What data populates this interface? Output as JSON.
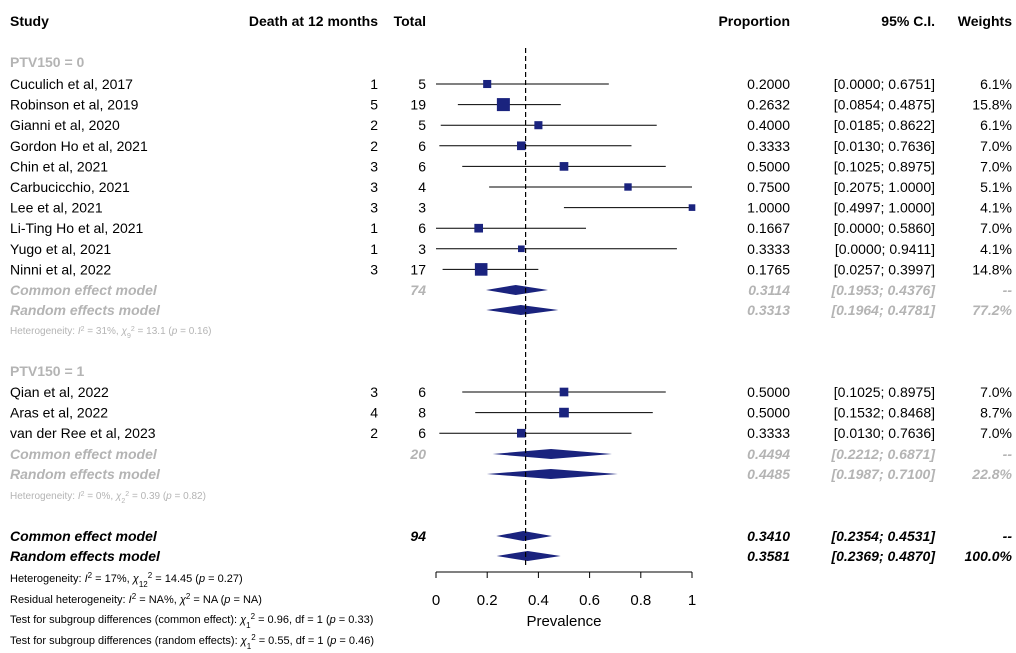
{
  "header": {
    "study": "Study",
    "events": "Death at 12 months",
    "total": "Total",
    "proportion": "Proportion",
    "ci": "95% C.I.",
    "weights": "Weights"
  },
  "colors": {
    "marker": "#1a237e",
    "grey": "#b4b4b4",
    "text": "#000000"
  },
  "chart_data": {
    "type": "forest",
    "xlabel": "Prevalence",
    "xlim": [
      0,
      1
    ],
    "x_ticks": [
      0,
      0.2,
      0.4,
      0.6,
      0.8,
      1
    ],
    "x_tick_labels": [
      "0",
      "0.2",
      "0.4",
      "0.6",
      "0.8",
      "1"
    ],
    "reference_line": 0.35,
    "subgroups": [
      {
        "label": "PTV150 = 0",
        "studies": [
          {
            "study": "Cuculich et al, 2017",
            "events": "1",
            "total": "5",
            "prop": 0.2,
            "lower": 0.0,
            "upper": 0.6751,
            "prop_text": "0.2000",
            "ci_text": "[0.0000; 0.6751]",
            "weight_text": "6.1%"
          },
          {
            "study": "Robinson et al, 2019",
            "events": "5",
            "total": "19",
            "prop": 0.2632,
            "lower": 0.0854,
            "upper": 0.4875,
            "prop_text": "0.2632",
            "ci_text": "[0.0854; 0.4875]",
            "weight_text": "15.8%"
          },
          {
            "study": "Gianni et al, 2020",
            "events": "2",
            "total": "5",
            "prop": 0.4,
            "lower": 0.0185,
            "upper": 0.8622,
            "prop_text": "0.4000",
            "ci_text": "[0.0185; 0.8622]",
            "weight_text": "6.1%"
          },
          {
            "study": "Gordon Ho et al, 2021",
            "events": "2",
            "total": "6",
            "prop": 0.3333,
            "lower": 0.013,
            "upper": 0.7636,
            "prop_text": "0.3333",
            "ci_text": "[0.0130; 0.7636]",
            "weight_text": "7.0%"
          },
          {
            "study": "Chin et al, 2021",
            "events": "3",
            "total": "6",
            "prop": 0.5,
            "lower": 0.1025,
            "upper": 0.8975,
            "prop_text": "0.5000",
            "ci_text": "[0.1025; 0.8975]",
            "weight_text": "7.0%"
          },
          {
            "study": "Carbucicchio, 2021",
            "events": "3",
            "total": "4",
            "prop": 0.75,
            "lower": 0.2075,
            "upper": 1.0,
            "prop_text": "0.7500",
            "ci_text": "[0.2075; 1.0000]",
            "weight_text": "5.1%"
          },
          {
            "study": "Lee et al, 2021",
            "events": "3",
            "total": "3",
            "prop": 1.0,
            "lower": 0.4997,
            "upper": 1.0,
            "prop_text": "1.0000",
            "ci_text": "[0.4997; 1.0000]",
            "weight_text": "4.1%"
          },
          {
            "study": "Li-Ting Ho et al, 2021",
            "events": "1",
            "total": "6",
            "prop": 0.1667,
            "lower": 0.0,
            "upper": 0.586,
            "prop_text": "0.1667",
            "ci_text": "[0.0000; 0.5860]",
            "weight_text": "7.0%"
          },
          {
            "study": "Yugo et al, 2021",
            "events": "1",
            "total": "3",
            "prop": 0.3333,
            "lower": 0.0,
            "upper": 0.9411,
            "prop_text": "0.3333",
            "ci_text": "[0.0000; 0.9411]",
            "weight_text": "4.1%"
          },
          {
            "study": "Ninni et al, 2022",
            "events": "3",
            "total": "17",
            "prop": 0.1765,
            "lower": 0.0257,
            "upper": 0.3997,
            "prop_text": "0.1765",
            "ci_text": "[0.0257; 0.3997]",
            "weight_text": "14.8%"
          }
        ],
        "common": {
          "label": "Common effect model",
          "total": "74",
          "prop": 0.3114,
          "lower": 0.1953,
          "upper": 0.4376,
          "prop_text": "0.3114",
          "ci_text": "[0.1953; 0.4376]",
          "weight_text": "--"
        },
        "random": {
          "label": "Random effects model",
          "prop": 0.3313,
          "lower": 0.1964,
          "upper": 0.4781,
          "prop_text": "0.3313",
          "ci_text": "[0.1964; 0.4781]",
          "weight_text": "77.2%"
        },
        "heterogeneity": {
          "i2": "31%",
          "df": "9",
          "chi2": "13.1",
          "p": "0.16"
        }
      },
      {
        "label": "PTV150 = 1",
        "studies": [
          {
            "study": "Qian et al, 2022",
            "events": "3",
            "total": "6",
            "prop": 0.5,
            "lower": 0.1025,
            "upper": 0.8975,
            "prop_text": "0.5000",
            "ci_text": "[0.1025; 0.8975]",
            "weight_text": "7.0%"
          },
          {
            "study": "Aras et al, 2022",
            "events": "4",
            "total": "8",
            "prop": 0.5,
            "lower": 0.1532,
            "upper": 0.8468,
            "prop_text": "0.5000",
            "ci_text": "[0.1532; 0.8468]",
            "weight_text": "8.7%"
          },
          {
            "study": "van der Ree et al, 2023",
            "events": "2",
            "total": "6",
            "prop": 0.3333,
            "lower": 0.013,
            "upper": 0.7636,
            "prop_text": "0.3333",
            "ci_text": "[0.0130; 0.7636]",
            "weight_text": "7.0%"
          }
        ],
        "common": {
          "label": "Common effect model",
          "total": "20",
          "prop": 0.4494,
          "lower": 0.2212,
          "upper": 0.6871,
          "prop_text": "0.4494",
          "ci_text": "[0.2212; 0.6871]",
          "weight_text": "--"
        },
        "random": {
          "label": "Random effects model",
          "prop": 0.4485,
          "lower": 0.1987,
          "upper": 0.71,
          "prop_text": "0.4485",
          "ci_text": "[0.1987; 0.7100]",
          "weight_text": "22.8%"
        },
        "heterogeneity": {
          "i2": "0%",
          "df": "2",
          "chi2": "0.39",
          "p": "0.82"
        }
      }
    ],
    "overall": {
      "common": {
        "label": "Common effect model",
        "total": "94",
        "prop": 0.341,
        "lower": 0.2354,
        "upper": 0.4531,
        "prop_text": "0.3410",
        "ci_text": "[0.2354; 0.4531]",
        "weight_text": "--"
      },
      "random": {
        "label": "Random effects model",
        "prop": 0.3581,
        "lower": 0.2369,
        "upper": 0.487,
        "prop_text": "0.3581",
        "ci_text": "[0.2369; 0.4870]",
        "weight_text": "100.0%"
      },
      "heterogeneity": {
        "i2": "17%",
        "df": "12",
        "chi2": "14.45",
        "p": "0.27"
      }
    },
    "footer_stats": {
      "residual": {
        "i2": "NA%",
        "chi2": "NA",
        "p": "NA"
      },
      "subgroup_common": {
        "chi2": "0.96",
        "df": "1",
        "p": "0.33"
      },
      "subgroup_random": {
        "chi2": "0.55",
        "df": "1",
        "p": "0.46"
      }
    }
  }
}
